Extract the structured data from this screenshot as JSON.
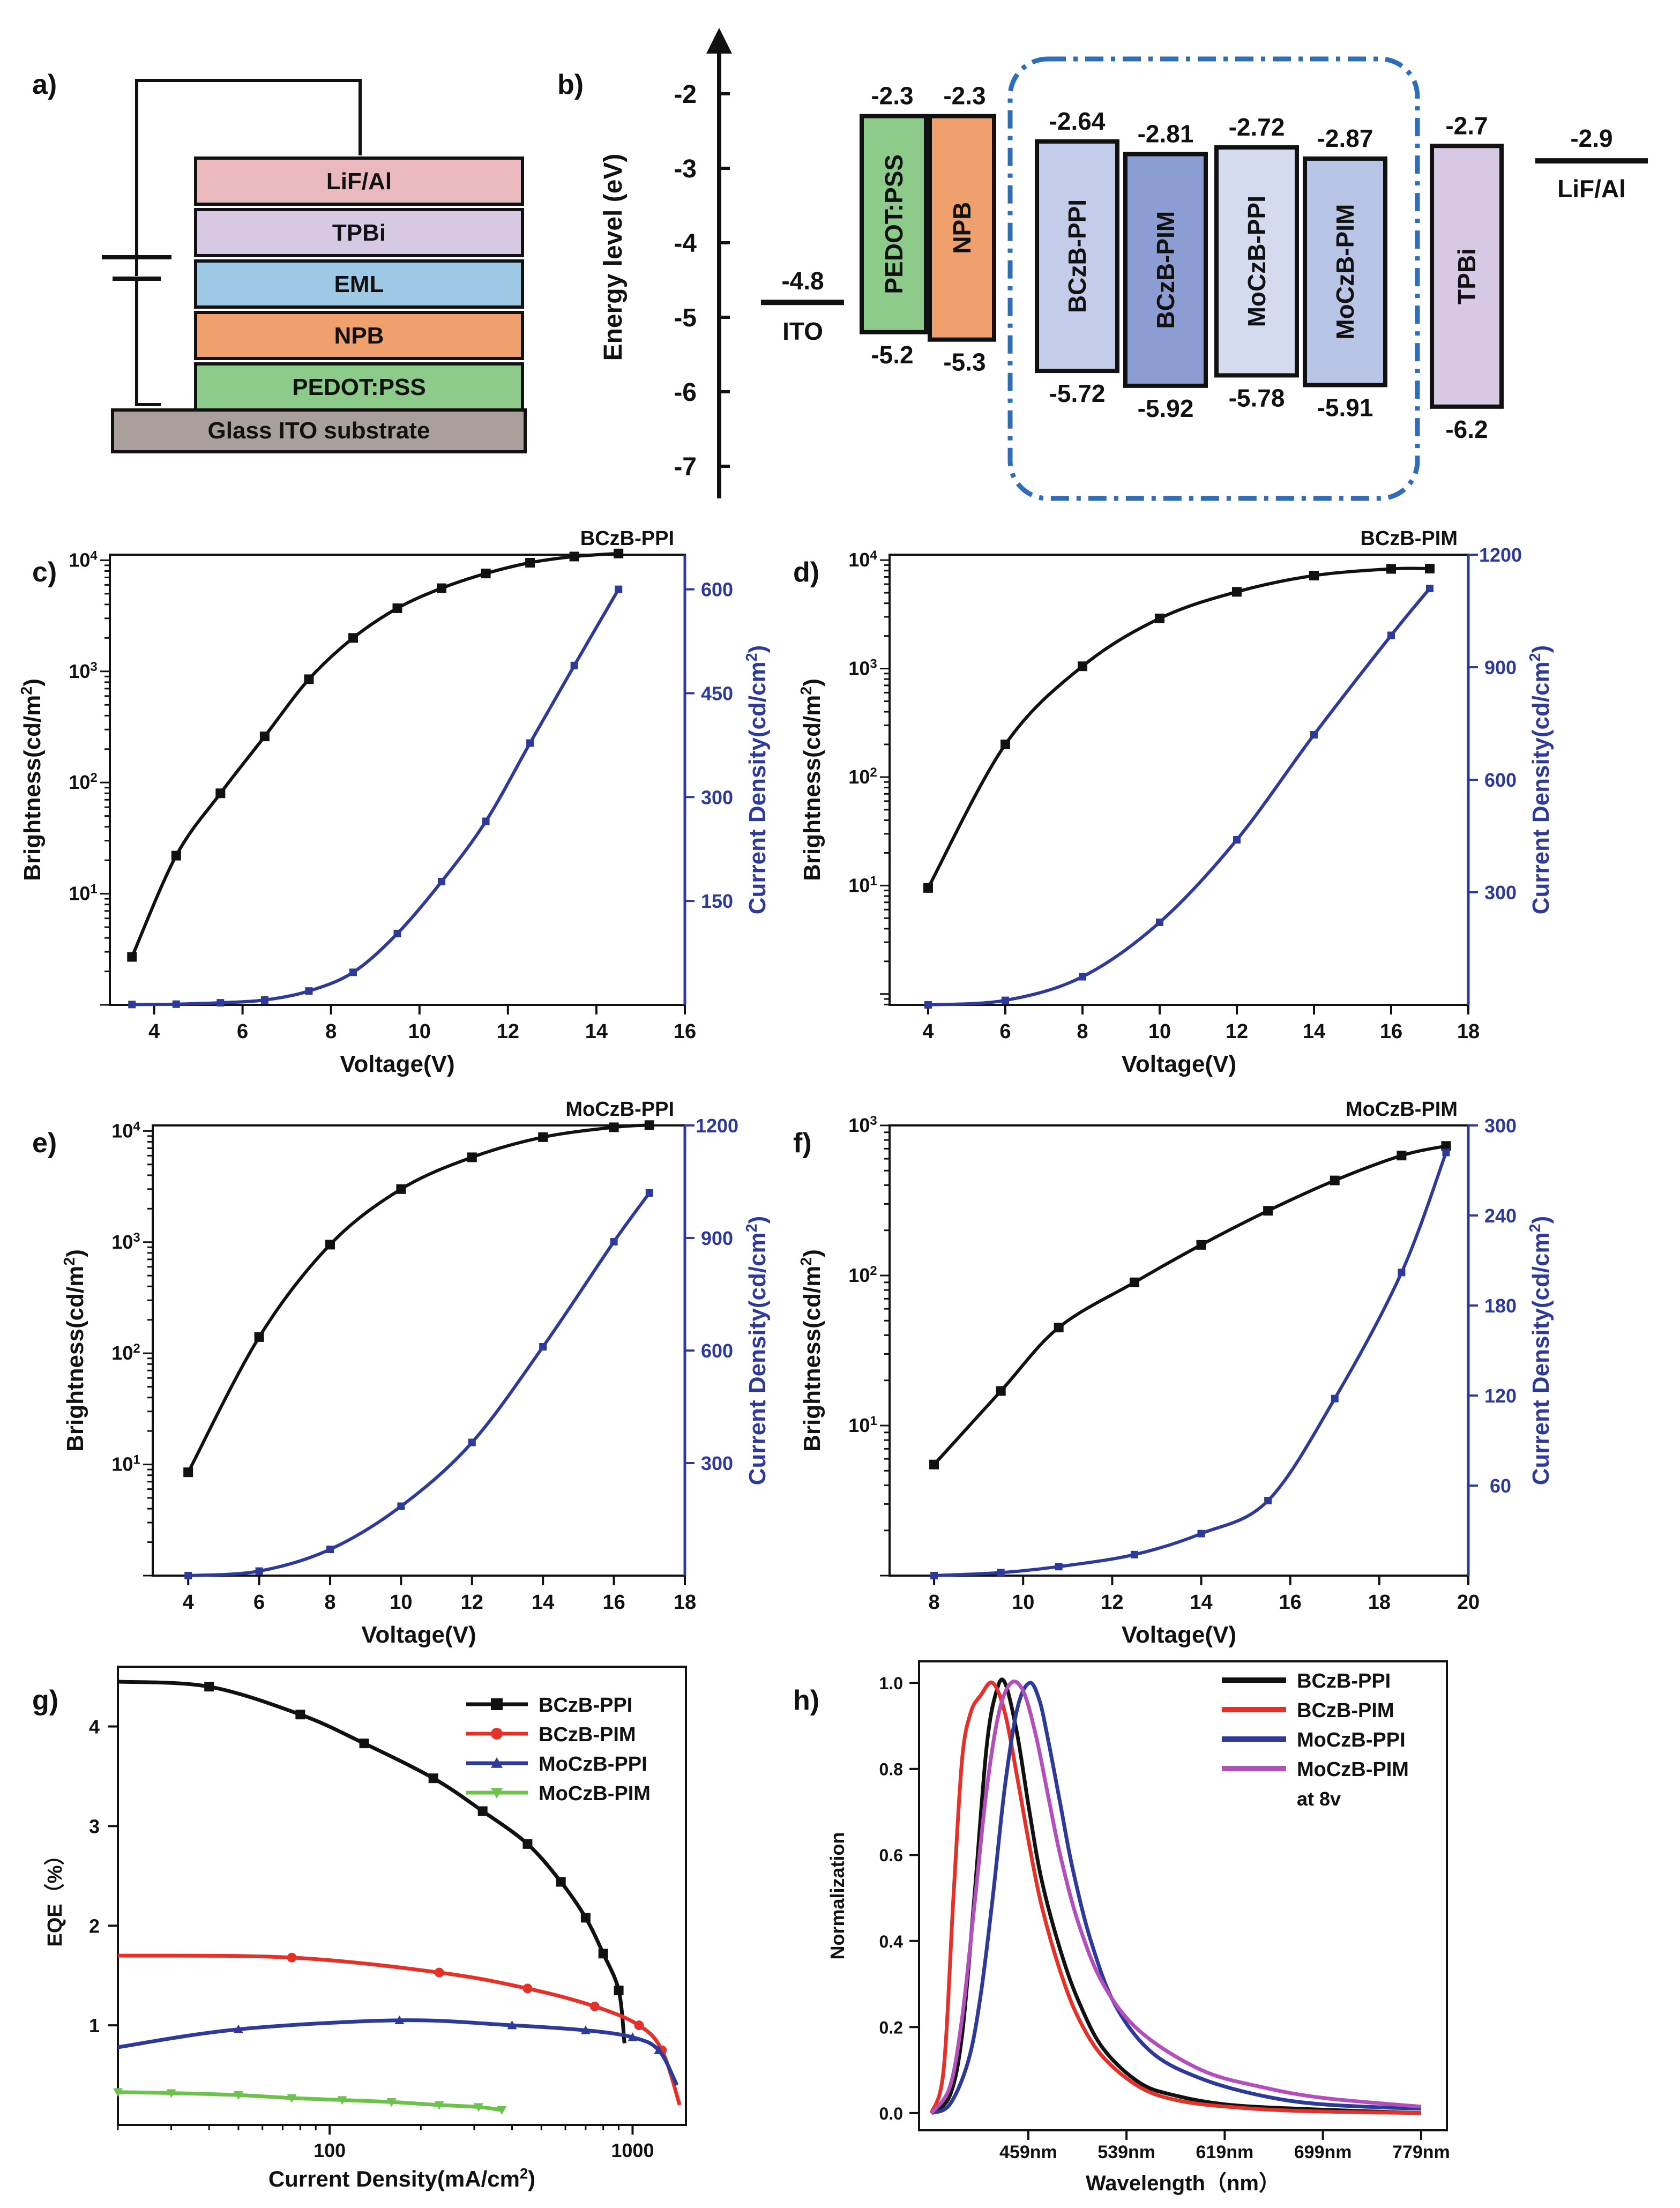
{
  "panel_labels": {
    "a": "a)",
    "b": "b)",
    "c": "c)",
    "d": "d)",
    "e": "e)",
    "f": "f)",
    "g": "g)",
    "h": "h)"
  },
  "colors": {
    "black": "#111111",
    "blue": "#2e3a9a",
    "red": "#e4322b",
    "green": "#6cc24a",
    "purple": "#b34fba",
    "lif": "#e9b9bd",
    "tpbi": "#d7c8e3",
    "eml": "#9dc9e6",
    "npb": "#f0a06c",
    "pedot": "#8dcb8b",
    "ito": "#a9a09e"
  },
  "device_stack": {
    "layers": [
      "LiF/Al",
      "TPBi",
      "EML",
      "NPB",
      "PEDOT:PSS"
    ],
    "substrate": "Glass ITO substrate"
  },
  "chart_data": [
    {
      "panel": "b",
      "type": "energy-level-diagram",
      "ylabel": "Energy level (eV)",
      "yticks": [
        "-2",
        "-3",
        "-4",
        "-5",
        "-6",
        "-7"
      ],
      "ylim": [
        -7.3,
        -1.3
      ],
      "levels": [
        {
          "name": "ITO",
          "value": -4.8,
          "value_label": "-4.8"
        },
        {
          "name": "PEDOT:PSS",
          "lumo": -2.3,
          "homo": -5.2,
          "lumo_label": "-2.3",
          "homo_label": "-5.2"
        },
        {
          "name": "NPB",
          "lumo": -2.3,
          "homo": -5.3,
          "lumo_label": "-2.3",
          "homo_label": "-5.3"
        },
        {
          "name": "BCzB-PPI",
          "lumo": -2.64,
          "homo": -5.72,
          "lumo_label": "-2.64",
          "homo_label": "-5.72"
        },
        {
          "name": "BCzB-PIM",
          "lumo": -2.81,
          "homo": -5.92,
          "lumo_label": "-2.81",
          "homo_label": "-5.92"
        },
        {
          "name": "MoCzB-PPI",
          "lumo": -2.72,
          "homo": -5.78,
          "lumo_label": "-2.72",
          "homo_label": "-5.78"
        },
        {
          "name": "MoCzB-PIM",
          "lumo": -2.87,
          "homo": -5.91,
          "lumo_label": "-2.87",
          "homo_label": "-5.91"
        },
        {
          "name": "TPBi",
          "lumo": -2.7,
          "homo": -6.2,
          "lumo_label": "-2.7",
          "homo_label": "-6.2"
        },
        {
          "name": "LiF/Al",
          "value": -2.9,
          "value_label": "-2.9"
        }
      ]
    },
    {
      "panel": "c",
      "type": "line",
      "title": "BCzB-PPI",
      "xlabel": "Voltage(V)",
      "ylabel": "Brightness(cd/m2)",
      "y2label": "Current Density(cd/cm2)",
      "xlim": [
        3,
        16
      ],
      "xticks": [
        4,
        6,
        8,
        10,
        12,
        14,
        16
      ],
      "ylog": [
        0,
        4.05
      ],
      "ylog_ticks": [
        1,
        2,
        3,
        4
      ],
      "y2lim": [
        0,
        650
      ],
      "y2ticks": [
        150,
        300,
        450,
        600
      ],
      "brightness": {
        "x": [
          3.5,
          4.5,
          5.5,
          6.5,
          7.5,
          8.5,
          9.5,
          10.5,
          11.5,
          12.5,
          13.5,
          14.5
        ],
        "y": [
          2.7,
          22,
          80,
          260,
          850,
          2000,
          3700,
          5600,
          7600,
          9500,
          10800,
          11500
        ]
      },
      "current": {
        "x": [
          3.5,
          4.5,
          5.5,
          6.5,
          7.5,
          8.5,
          9.5,
          10.5,
          11.5,
          12.5,
          13.5,
          14.5
        ],
        "y": [
          0.5,
          1,
          3,
          7,
          20,
          47,
          103,
          178,
          265,
          378,
          490,
          600
        ]
      }
    },
    {
      "panel": "d",
      "type": "line",
      "title": "BCzB-PIM",
      "xlabel": "Voltage(V)",
      "ylabel": "Brightness(cd/m2)",
      "y2label": "Current Density(cd/cm2)",
      "xlim": [
        3,
        18
      ],
      "xticks": [
        4,
        6,
        8,
        10,
        12,
        14,
        16,
        18
      ],
      "ylog": [
        -0.1,
        4.05
      ],
      "ylog_ticks": [
        1,
        2,
        3,
        4
      ],
      "y2lim": [
        0,
        1200
      ],
      "y2ticks": [
        300,
        600,
        900,
        1200
      ],
      "brightness": {
        "x": [
          4,
          6,
          8,
          10,
          12,
          14,
          16,
          17
        ],
        "y": [
          9.5,
          200,
          1050,
          2900,
          5100,
          7200,
          8300,
          8350
        ]
      },
      "current": {
        "x": [
          4,
          6,
          8,
          10,
          12,
          14,
          16,
          17
        ],
        "y": [
          0,
          12,
          75,
          220,
          440,
          720,
          985,
          1110
        ]
      }
    },
    {
      "panel": "e",
      "type": "line",
      "title": "MoCzB-PPI",
      "xlabel": "Voltage(V)",
      "ylabel": "Brightness(cd/m2)",
      "y2label": "Current Density(cd/cm2)",
      "xlim": [
        3,
        18
      ],
      "xticks": [
        4,
        6,
        8,
        10,
        12,
        14,
        16,
        18
      ],
      "ylog": [
        0,
        4.05
      ],
      "ylog_ticks": [
        1,
        2,
        3,
        4
      ],
      "y2lim": [
        0,
        1200
      ],
      "y2ticks": [
        300,
        600,
        900,
        1200
      ],
      "brightness": {
        "x": [
          4,
          6,
          8,
          10,
          12,
          14,
          16,
          17
        ],
        "y": [
          8.5,
          140,
          950,
          3000,
          5800,
          8800,
          10800,
          11300
        ]
      },
      "current": {
        "x": [
          4,
          6,
          8,
          10,
          12,
          14,
          16,
          17
        ],
        "y": [
          0,
          12,
          70,
          185,
          355,
          610,
          890,
          1020
        ]
      }
    },
    {
      "panel": "f",
      "type": "line",
      "title": "MoCzB-PIM",
      "xlabel": "Voltage(V)",
      "ylabel": "Brightness(cd/m2)",
      "y2label": "Current Density(cd/cm2)",
      "xlim": [
        7,
        20
      ],
      "xticks": [
        8,
        10,
        12,
        14,
        16,
        18,
        20
      ],
      "ylog": [
        0,
        3
      ],
      "ylog_ticks": [
        1,
        2,
        3
      ],
      "y2lim": [
        0,
        300
      ],
      "y2ticks": [
        60,
        120,
        180,
        240,
        300
      ],
      "brightness": {
        "x": [
          8,
          9.5,
          10.8,
          12.5,
          14,
          15.5,
          17,
          18.5,
          19.5
        ],
        "y": [
          5.5,
          17,
          45,
          90,
          160,
          270,
          430,
          630,
          730
        ]
      },
      "current": {
        "x": [
          8,
          9.5,
          10.8,
          12.5,
          14,
          15.5,
          17,
          18.5,
          19.5
        ],
        "y": [
          0,
          2,
          6,
          14,
          28,
          50,
          118,
          202,
          282
        ]
      }
    },
    {
      "panel": "g",
      "type": "line",
      "xscale": "log",
      "xlabel": "Current Density(mA/cm2)",
      "ylabel": "EQE（%）",
      "xlim": [
        20,
        1500
      ],
      "xticks": [
        100,
        1000
      ],
      "ylim": [
        0,
        4.6
      ],
      "yticks": [
        1,
        2,
        3,
        4
      ],
      "series": [
        {
          "name": "BCzB-PPI",
          "color_key": "black",
          "marker": "square",
          "x": [
            20,
            40,
            80,
            130,
            220,
            320,
            450,
            580,
            700,
            800,
            900,
            940
          ],
          "y": [
            4.45,
            4.4,
            4.12,
            3.83,
            3.48,
            3.15,
            2.82,
            2.44,
            2.08,
            1.72,
            1.35,
            0.82
          ]
        },
        {
          "name": "BCzB-PIM",
          "color_key": "red",
          "marker": "circle",
          "x": [
            20,
            75,
            230,
            450,
            750,
            1050,
            1250,
            1430
          ],
          "y": [
            1.7,
            1.68,
            1.53,
            1.37,
            1.19,
            1.0,
            0.75,
            0.2
          ]
        },
        {
          "name": "MoCzB-PPI",
          "color_key": "blue",
          "marker": "triangle",
          "x": [
            20,
            50,
            170,
            400,
            700,
            1000,
            1220,
            1400
          ],
          "y": [
            0.78,
            0.96,
            1.05,
            1.0,
            0.95,
            0.88,
            0.75,
            0.4
          ]
        },
        {
          "name": "MoCzB-PIM",
          "color_key": "green",
          "marker": "triangle-down",
          "x": [
            20,
            30,
            50,
            75,
            110,
            160,
            230,
            310,
            370
          ],
          "y": [
            0.33,
            0.32,
            0.3,
            0.27,
            0.25,
            0.23,
            0.2,
            0.18,
            0.15
          ]
        }
      ]
    },
    {
      "panel": "h",
      "type": "line",
      "xlabel": "Wavelength（nm）",
      "ylabel": "Normalization",
      "note": "at 8v",
      "xlim": [
        370,
        800
      ],
      "xticks": [
        "459nm",
        "539nm",
        "619nm",
        "699nm",
        "779nm"
      ],
      "xtick_values": [
        459,
        539,
        619,
        699,
        779
      ],
      "ylim": [
        -0.04,
        1.05
      ],
      "yticks": [
        "0.0",
        "0.2",
        "0.4",
        "0.6",
        "0.8",
        "1.0"
      ],
      "series": [
        {
          "name": "BCzB-PPI",
          "color_key": "black",
          "x": [
            380,
            395,
            405,
            415,
            425,
            433,
            440,
            450,
            460,
            470,
            485,
            500,
            520,
            550,
            580,
            620,
            680,
            779
          ],
          "y": [
            0,
            0.04,
            0.18,
            0.5,
            0.85,
            0.98,
            1.0,
            0.88,
            0.7,
            0.54,
            0.38,
            0.26,
            0.15,
            0.07,
            0.04,
            0.02,
            0.01,
            0
          ]
        },
        {
          "name": "BCzB-PIM",
          "color_key": "red",
          "x": [
            380,
            390,
            398,
            405,
            412,
            420,
            430,
            440,
            450,
            460,
            470,
            485,
            500,
            520,
            550,
            580,
            620,
            680,
            779
          ],
          "y": [
            0,
            0.1,
            0.5,
            0.82,
            0.93,
            0.97,
            1.0,
            0.93,
            0.78,
            0.62,
            0.48,
            0.33,
            0.22,
            0.13,
            0.06,
            0.03,
            0.015,
            0.005,
            0
          ]
        },
        {
          "name": "MoCzB-PPI",
          "color_key": "blue",
          "x": [
            380,
            395,
            410,
            420,
            430,
            440,
            450,
            460,
            468,
            475,
            485,
            495,
            510,
            530,
            560,
            600,
            650,
            700,
            779
          ],
          "y": [
            0,
            0.02,
            0.12,
            0.27,
            0.5,
            0.76,
            0.94,
            1.0,
            0.96,
            0.87,
            0.72,
            0.57,
            0.4,
            0.25,
            0.14,
            0.08,
            0.04,
            0.02,
            0.01
          ]
        },
        {
          "name": "MoCzB-PIM",
          "color_key": "purple",
          "x": [
            380,
            395,
            405,
            415,
            425,
            435,
            445,
            455,
            465,
            475,
            485,
            500,
            520,
            550,
            600,
            650,
            700,
            779
          ],
          "y": [
            0,
            0.06,
            0.22,
            0.48,
            0.75,
            0.93,
            1.0,
            0.98,
            0.88,
            0.74,
            0.6,
            0.44,
            0.3,
            0.19,
            0.1,
            0.06,
            0.035,
            0.015
          ]
        }
      ]
    }
  ]
}
